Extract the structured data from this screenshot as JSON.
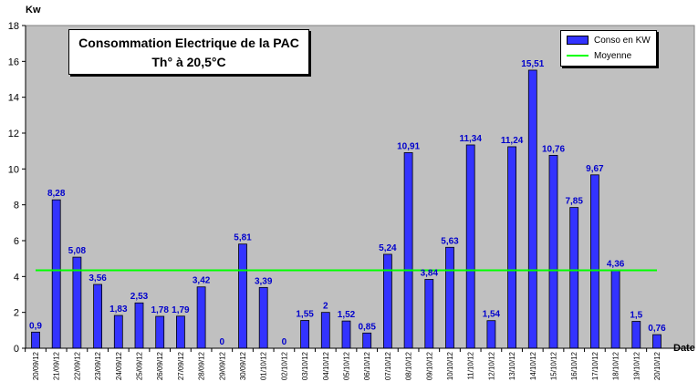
{
  "chart_data": {
    "type": "bar",
    "title": "Consommation Electrique de la PAC",
    "subtitle": "Th° à 20,5°C",
    "xlabel": "Date",
    "ylabel": "Kw",
    "ylim": [
      0,
      18
    ],
    "yticks": [
      "0",
      "2",
      "4",
      "6",
      "8",
      "10",
      "12",
      "14",
      "16",
      "18"
    ],
    "grid": false,
    "legend_position": "top-right",
    "categories": [
      "20/09/12",
      "21/09/12",
      "22/09/12",
      "23/09/12",
      "24/09/12",
      "25/09/12",
      "26/09/12",
      "27/09/12",
      "28/09/12",
      "29/09/12",
      "30/09/12",
      "01/10/12",
      "02/10/12",
      "03/10/12",
      "04/10/12",
      "05/10/12",
      "06/10/12",
      "07/10/12",
      "08/10/12",
      "09/10/12",
      "10/10/12",
      "11/10/12",
      "12/10/12",
      "13/10/12",
      "14/10/12",
      "15/10/12",
      "16/10/12",
      "17/10/12",
      "18/10/12",
      "19/10/12",
      "20/10/12"
    ],
    "series": [
      {
        "name": "Conso en KW",
        "kind": "bar",
        "color": "#3333ff",
        "values": [
          0.9,
          8.28,
          5.08,
          3.56,
          1.83,
          2.53,
          1.78,
          1.79,
          3.42,
          0,
          5.81,
          3.39,
          0,
          1.55,
          2,
          1.52,
          0.85,
          5.24,
          10.91,
          3.84,
          5.63,
          11.34,
          1.54,
          11.24,
          15.51,
          10.76,
          7.85,
          9.67,
          4.36,
          1.5,
          0.76
        ],
        "labels": [
          "0,9",
          "8,28",
          "5,08",
          "3,56",
          "1,83",
          "2,53",
          "1,78",
          "1,79",
          "3,42",
          "0",
          "5,81",
          "3,39",
          "0",
          "1,55",
          "2",
          "1,52",
          "0,85",
          "5,24",
          "10,91",
          "3,84",
          "5,63",
          "11,34",
          "1,54",
          "11,24",
          "15,51",
          "10,76",
          "7,85",
          "9,67",
          "4,36",
          "1,5",
          "0,76"
        ]
      },
      {
        "name": "Moyenne",
        "kind": "line",
        "color": "#00ff00",
        "value": 4.35
      }
    ],
    "colors": {
      "plot_background": "#c0c0c0",
      "data_label": "#0000cc"
    }
  }
}
